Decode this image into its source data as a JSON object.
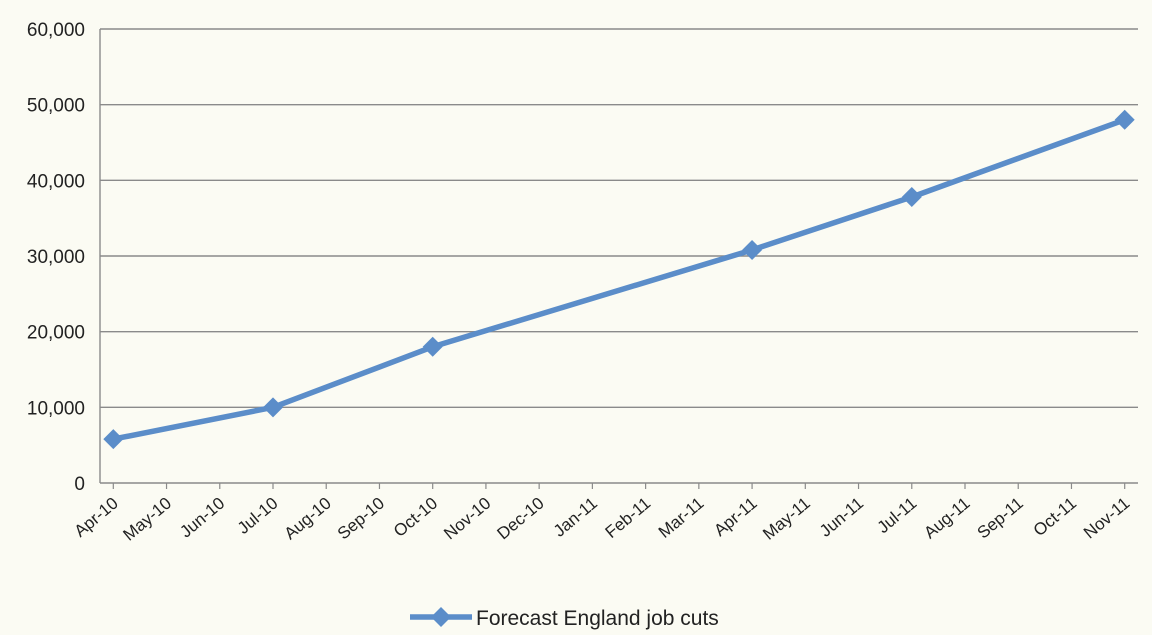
{
  "chart_data": {
    "type": "line",
    "title": "",
    "xlabel": "",
    "ylabel": "",
    "categories": [
      "Apr-10",
      "May-10",
      "Jun-10",
      "Jul-10",
      "Aug-10",
      "Sep-10",
      "Oct-10",
      "Nov-10",
      "Dec-10",
      "Jan-11",
      "Feb-11",
      "Mar-11",
      "Apr-11",
      "May-11",
      "Jun-11",
      "Jul-11",
      "Aug-11",
      "Sep-11",
      "Oct-11",
      "Nov-11"
    ],
    "y_ticks": [
      "0",
      "10,000",
      "20,000",
      "30,000",
      "40,000",
      "50,000",
      "60,000"
    ],
    "ylim": [
      0,
      60000
    ],
    "grid": true,
    "legend_position": "bottom",
    "colors": {
      "series": "#5b8dc9",
      "grid": "#8a8a8a",
      "axis": "#8a8a8a",
      "background": "#fbfbf3"
    },
    "series": [
      {
        "name": "Forecast England job cuts",
        "points": [
          {
            "x": "Apr-10",
            "y": 5800
          },
          {
            "x": "Jul-10",
            "y": 10000
          },
          {
            "x": "Oct-10",
            "y": 18000
          },
          {
            "x": "Apr-11",
            "y": 30800
          },
          {
            "x": "Jul-11",
            "y": 37800
          },
          {
            "x": "Nov-11",
            "y": 48000
          }
        ]
      }
    ]
  }
}
